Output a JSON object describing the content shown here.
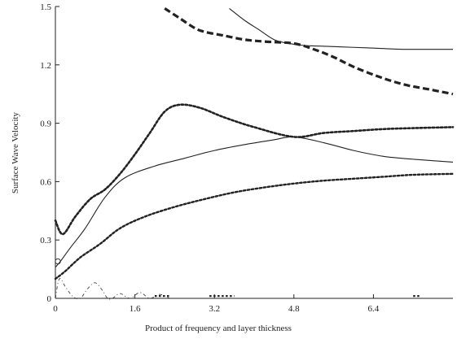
{
  "chart_data": {
    "type": "line",
    "xlabel": "Product of frequency and layer thickness",
    "ylabel": "Surface Wave Velocity",
    "xlim": [
      0,
      8.0
    ],
    "ylim": [
      0,
      1.5
    ],
    "xticks": [
      "0",
      "1.6",
      "3.2",
      "4.8",
      "6.4"
    ],
    "yticks": [
      "0",
      "0.3",
      "0.6",
      "0.9",
      "1.2",
      "1.5"
    ],
    "grid": false,
    "series": [
      {
        "style": "solid",
        "color": "#222222",
        "width": 1.1,
        "x": [
          0,
          0.1,
          0.3,
          0.6,
          1.0,
          1.4,
          2.0,
          2.6,
          3.2,
          3.8,
          4.4,
          4.8,
          5.4,
          6.0,
          6.6,
          7.2,
          8.0
        ],
        "y": [
          0.16,
          0.19,
          0.26,
          0.36,
          0.52,
          0.62,
          0.68,
          0.72,
          0.76,
          0.79,
          0.815,
          0.83,
          0.8,
          0.76,
          0.73,
          0.715,
          0.7
        ]
      },
      {
        "style": "solid",
        "color": "#222222",
        "width": 1.1,
        "x": [
          3.5,
          3.8,
          4.1,
          4.4,
          4.7,
          5.0,
          5.5,
          6.0,
          6.5,
          7.0,
          7.5,
          8.0
        ],
        "y": [
          1.49,
          1.43,
          1.38,
          1.33,
          1.31,
          1.3,
          1.295,
          1.29,
          1.285,
          1.28,
          1.28,
          1.28
        ]
      },
      {
        "style": "dashed",
        "color": "#222222",
        "width": 3.2,
        "x": [
          2.2,
          2.5,
          2.8,
          3.0,
          3.4,
          3.8,
          4.2,
          4.8,
          5.2,
          5.6,
          6.0,
          6.5,
          7.0,
          7.5,
          8.0
        ],
        "y": [
          1.49,
          1.44,
          1.39,
          1.37,
          1.35,
          1.33,
          1.32,
          1.31,
          1.28,
          1.24,
          1.19,
          1.14,
          1.1,
          1.075,
          1.05
        ]
      },
      {
        "style": "dotted",
        "color": "#222222",
        "width": 2.6,
        "x": [
          0,
          0.15,
          0.4,
          0.7,
          1.0,
          1.3,
          1.6,
          1.9,
          2.2,
          2.5,
          2.9,
          3.4,
          4.0,
          4.8,
          5.4,
          6.0,
          6.6,
          7.2,
          8.0
        ],
        "y": [
          0.4,
          0.33,
          0.42,
          0.51,
          0.56,
          0.64,
          0.74,
          0.85,
          0.96,
          0.995,
          0.98,
          0.93,
          0.88,
          0.83,
          0.85,
          0.86,
          0.87,
          0.875,
          0.88
        ]
      },
      {
        "style": "dotted",
        "color": "#222222",
        "width": 2.4,
        "x": [
          0,
          0.2,
          0.5,
          0.9,
          1.3,
          1.8,
          2.4,
          3.0,
          3.6,
          4.2,
          4.8,
          5.4,
          6.0,
          6.6,
          7.2,
          8.0
        ],
        "y": [
          0.1,
          0.14,
          0.21,
          0.28,
          0.36,
          0.42,
          0.47,
          0.51,
          0.545,
          0.57,
          0.59,
          0.605,
          0.615,
          0.625,
          0.635,
          0.64
        ]
      },
      {
        "style": "dashdot",
        "color": "#444444",
        "width": 0.9,
        "x": [
          0,
          0.08,
          0.2,
          0.35,
          0.5,
          0.65,
          0.8,
          0.95,
          1.05,
          1.15,
          1.3,
          1.5,
          1.7,
          1.9,
          2.1,
          2.3
        ],
        "y": [
          0.0,
          0.1,
          0.06,
          0.01,
          0.0,
          0.05,
          0.08,
          0.04,
          0.0,
          0.0,
          0.025,
          0.0,
          0.03,
          0.0,
          0.02,
          0.0
        ]
      }
    ],
    "fragments": [
      {
        "x": [
          2.0,
          2.3
        ],
        "y": [
          0.012,
          0.012
        ],
        "style": "dotted"
      },
      {
        "x": [
          3.1,
          3.6
        ],
        "y": [
          0.012,
          0.012
        ],
        "style": "dotted"
      },
      {
        "x": [
          7.2,
          7.35
        ],
        "y": [
          0.012,
          0.012
        ],
        "style": "dotted"
      }
    ]
  }
}
